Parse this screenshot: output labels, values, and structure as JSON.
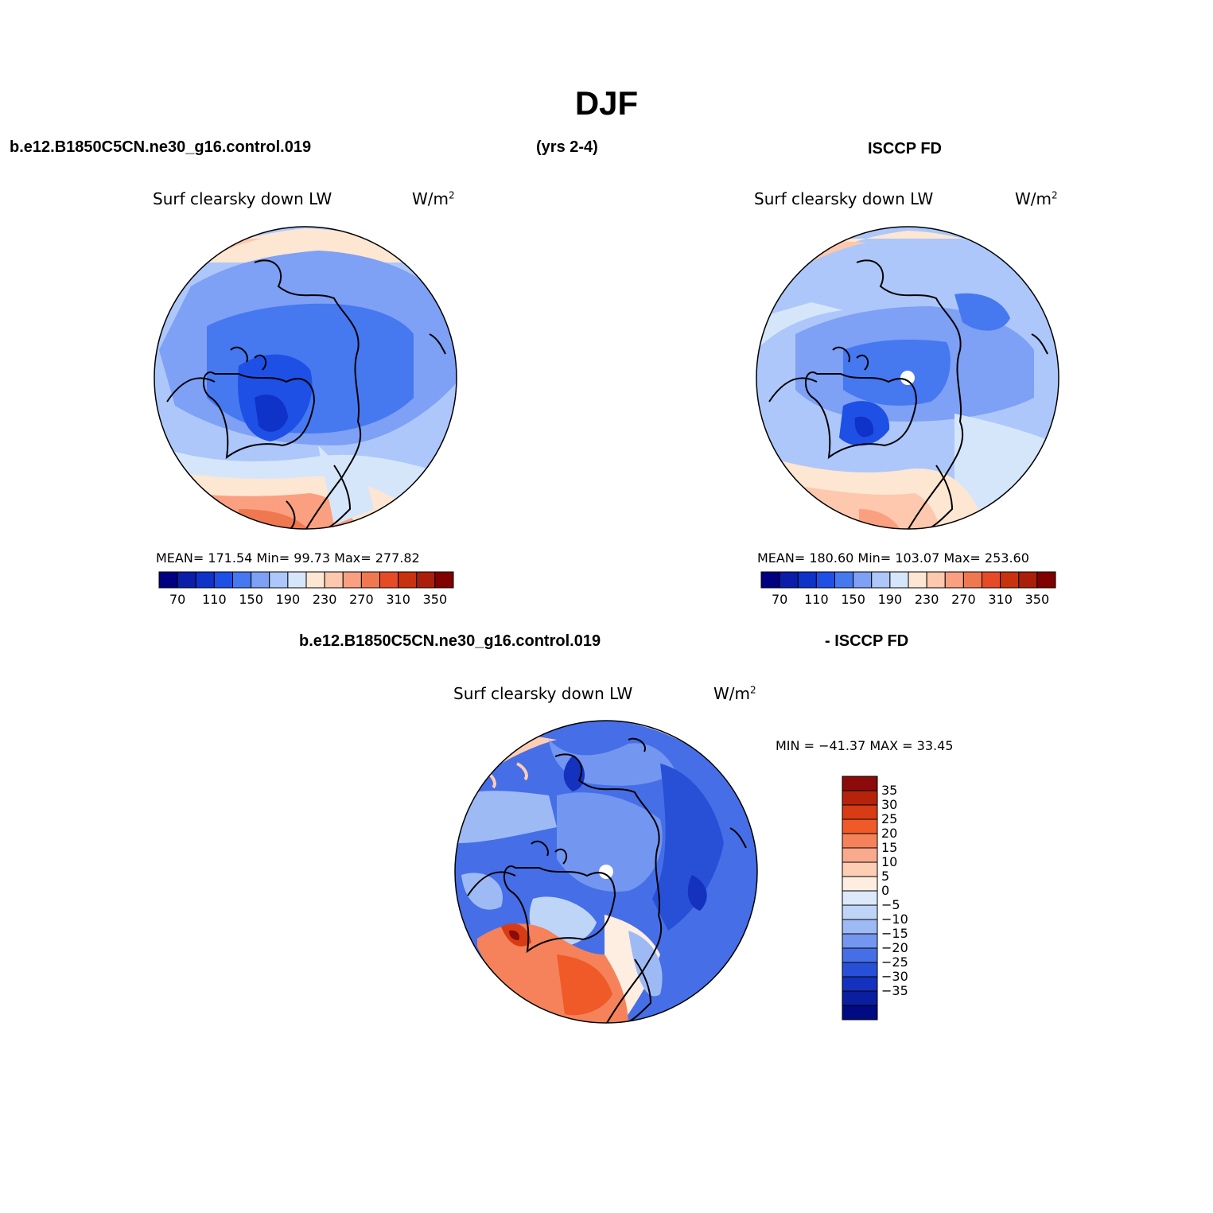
{
  "main_title": "DJF",
  "top_left_case": "b.e12.B1850C5CN.ne30_g16.control.019",
  "years": "(yrs 2-4)",
  "top_right_obs": "ISCCP FD",
  "bottom_case": "b.e12.B1850C5CN.ne30_g16.control.019",
  "bottom_obs": "- ISCCP FD",
  "panels": {
    "model": {
      "variable": "Surf clearsky down LW",
      "units_base": "W/m",
      "units_exp": "2",
      "stats": "MEAN= 171.54   Min=   99.73   Max= 277.82"
    },
    "obs": {
      "variable": "Surf clearsky down LW",
      "units_base": "W/m",
      "units_exp": "2",
      "stats": "MEAN=  180.60   Min=  103.07   Max=  253.60"
    },
    "diff": {
      "variable": "Surf clearsky down LW",
      "units_base": "W/m",
      "units_exp": "2",
      "stats": "MIN = −41.37 MAX =   33.45"
    }
  },
  "abs_colorbar": {
    "colors": [
      "#000080",
      "#0a1eaa",
      "#0f32c8",
      "#1e50e6",
      "#4678f0",
      "#7ea0f5",
      "#adc7fa",
      "#d6e6fa",
      "#fde6d2",
      "#fdc8ad",
      "#faa080",
      "#f07850",
      "#e64b28",
      "#c8320f",
      "#aa1e0a",
      "#800000"
    ],
    "labels": [
      "70",
      "110",
      "150",
      "190",
      "230",
      "270",
      "310",
      "350"
    ]
  },
  "diff_colorbar": {
    "colors_top_to_bottom": [
      "#8c0a0a",
      "#b4230a",
      "#d73c14",
      "#f05a28",
      "#f5825a",
      "#faaa8c",
      "#fdcdb4",
      "#fdeee1",
      "#dbe9fa",
      "#bed5f8",
      "#9ebaf5",
      "#7396f0",
      "#466ee6",
      "#2850d7",
      "#1432be",
      "#0a1ea0",
      "#000a82"
    ],
    "labels": [
      "35",
      "30",
      "25",
      "20",
      "15",
      "10",
      "5",
      "0",
      "−5",
      "−10",
      "−15",
      "−20",
      "−25",
      "−30",
      "−35"
    ]
  }
}
